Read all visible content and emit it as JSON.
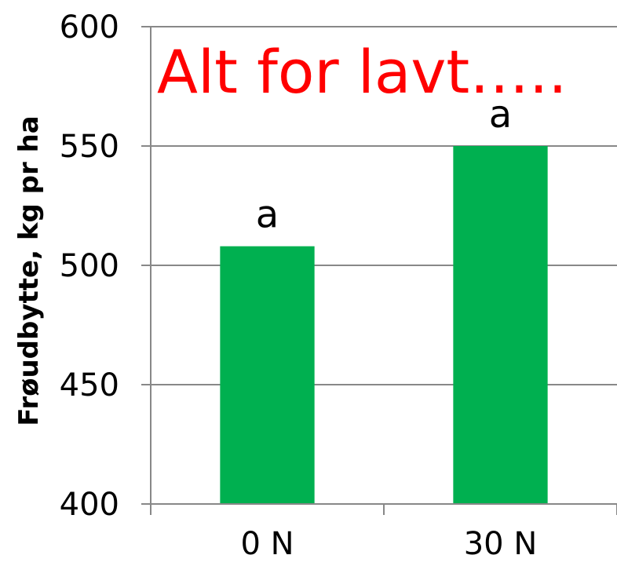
{
  "chart_data": {
    "type": "bar",
    "categories": [
      "0 N",
      "30 N"
    ],
    "values": [
      508,
      550
    ],
    "bar_labels": [
      "a",
      "a"
    ],
    "ylabel": "Frøudbytte, kg pr ha",
    "xlabel": "",
    "ylim": [
      400,
      600
    ],
    "yticks": [
      "400",
      "450",
      "500",
      "550",
      "600"
    ],
    "grid": true,
    "annotation": "Alt for lavt…..",
    "colors": {
      "bar": "#00b050",
      "annotation": "#ff0000",
      "grid": "#888888"
    }
  }
}
